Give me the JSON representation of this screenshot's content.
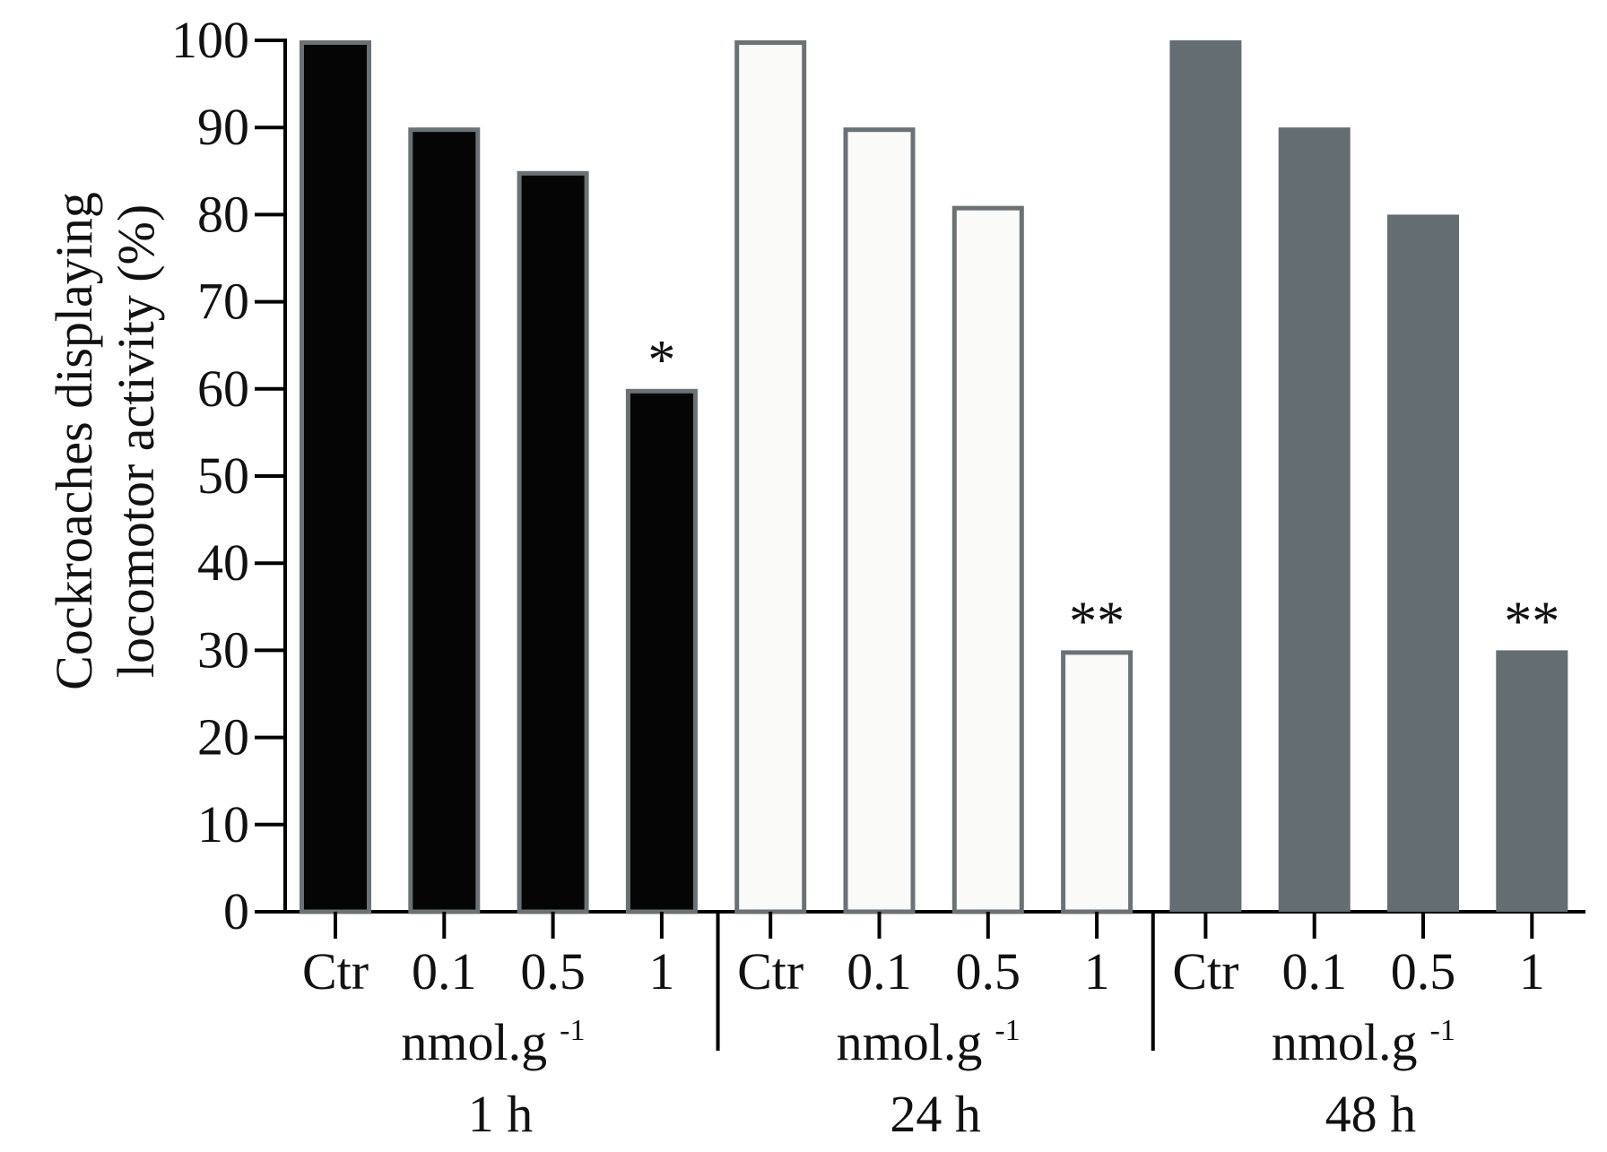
{
  "chart_data": {
    "type": "bar",
    "ylabel_lines": [
      "Cockroaches displaying",
      "locomotor activity (%)"
    ],
    "ylim": [
      0,
      100
    ],
    "yticks": [
      0,
      10,
      20,
      30,
      40,
      50,
      60,
      70,
      80,
      90,
      100
    ],
    "categories": [
      "Ctr",
      "0.1",
      "0.5",
      "1"
    ],
    "unit_label": "nmol.g",
    "unit_exponent": "-1",
    "groups": [
      {
        "label": "1 h",
        "values": [
          100,
          90,
          85,
          60
        ],
        "annotations": [
          "",
          "",
          "",
          "*"
        ],
        "fill": "#050505",
        "stroke": "#6b7275"
      },
      {
        "label": "24 h",
        "values": [
          100,
          90,
          81,
          30
        ],
        "annotations": [
          "",
          "",
          "",
          "**"
        ],
        "fill": "#fafaf8",
        "stroke": "#6b7275"
      },
      {
        "label": "48 h",
        "values": [
          100,
          90,
          80,
          30
        ],
        "annotations": [
          "",
          "",
          "",
          "**"
        ],
        "fill": "#646d72",
        "stroke": "#646d72"
      }
    ],
    "grid": false,
    "legend": "none"
  }
}
